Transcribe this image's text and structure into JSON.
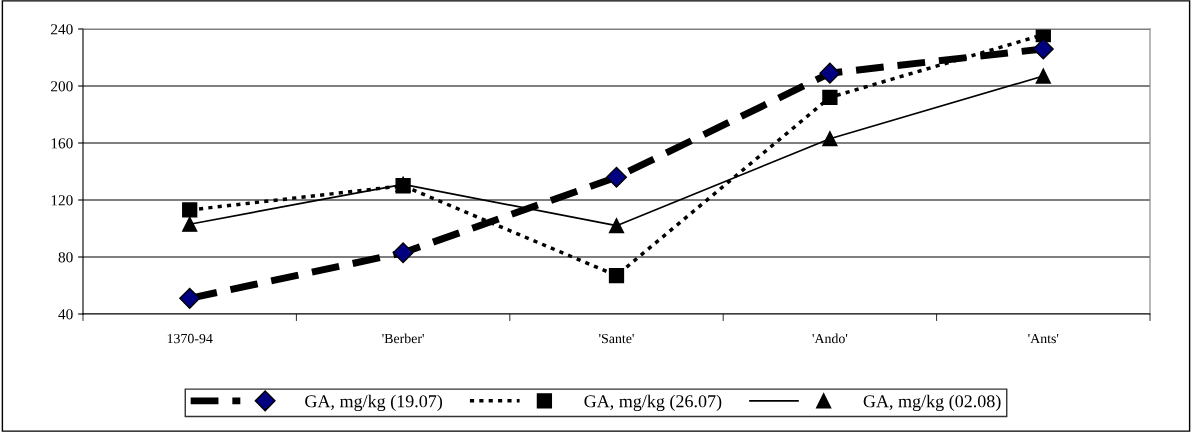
{
  "chart_data": {
    "type": "line",
    "categories": [
      "1370-94",
      "'Berber'",
      "'Sante'",
      "'Ando'",
      "'Ants'"
    ],
    "ylim": [
      40,
      240
    ],
    "yticks": [
      40,
      80,
      120,
      160,
      200,
      240
    ],
    "grid": "y",
    "legend": "bottom",
    "series": [
      {
        "name": "GA, mg/kg (19.07)",
        "color": "#000080",
        "marker": "diamond",
        "line_style": "dashed",
        "values": [
          51,
          83,
          136,
          209,
          226
        ]
      },
      {
        "name": "GA, mg/kg (26.07)",
        "color": "#000000",
        "marker": "square",
        "line_style": "dotted",
        "values": [
          113,
          130,
          67,
          192,
          236
        ]
      },
      {
        "name": "GA, mg/kg (02.08)",
        "color": "#000000",
        "marker": "triangle",
        "line_style": "solid",
        "values": [
          103,
          131,
          102,
          163,
          207
        ]
      }
    ]
  }
}
